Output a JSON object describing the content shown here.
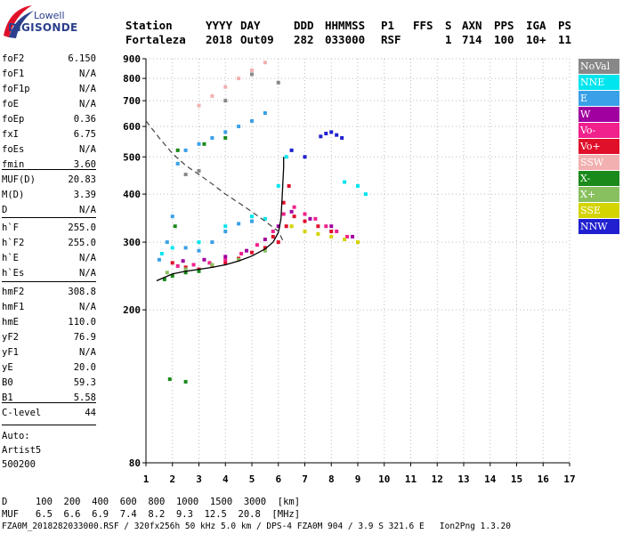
{
  "logo": {
    "top": "Lowell",
    "main": "DIGISONDE"
  },
  "header": {
    "line1": [
      "Station",
      "YYYY",
      "DAY",
      "DDD",
      "HHMMSS",
      "P1",
      "FFS",
      "S",
      "AXN",
      "PPS",
      "IGA",
      "PS"
    ],
    "line2": [
      "Fortaleza",
      "2018",
      "Out09",
      "282",
      "033000",
      "RSF",
      "1",
      "714",
      "100",
      "10+",
      "11"
    ]
  },
  "params": {
    "group1": [
      {
        "name": "foF2",
        "value": "6.150"
      },
      {
        "name": "foF1",
        "value": "N/A"
      },
      {
        "name": "foF1p",
        "value": "N/A"
      },
      {
        "name": "foE",
        "value": "N/A"
      },
      {
        "name": "foEp",
        "value": "0.36"
      },
      {
        "name": "fxI",
        "value": "6.75"
      },
      {
        "name": "foEs",
        "value": "N/A"
      },
      {
        "name": "fmin",
        "value": "3.60"
      }
    ],
    "group2": [
      {
        "name": "MUF(D)",
        "value": "20.83"
      },
      {
        "name": "M(D)",
        "value": "3.39"
      },
      {
        "name": "D",
        "value": "N/A"
      }
    ],
    "group3": [
      {
        "name": "h`F",
        "value": "255.0"
      },
      {
        "name": "h`F2",
        "value": "255.0"
      },
      {
        "name": "h`E",
        "value": "N/A"
      },
      {
        "name": "h`Es",
        "value": "N/A"
      }
    ],
    "group4": [
      {
        "name": "hmF2",
        "value": "308.8"
      },
      {
        "name": "hmF1",
        "value": "N/A"
      },
      {
        "name": "hmE",
        "value": "110.0"
      },
      {
        "name": "yF2",
        "value": "76.9"
      },
      {
        "name": "yF1",
        "value": "N/A"
      },
      {
        "name": "yE",
        "value": "20.0"
      },
      {
        "name": "B0",
        "value": "59.3"
      },
      {
        "name": "B1",
        "value": "5.58"
      }
    ],
    "group5": [
      {
        "name": "C-level",
        "value": "44"
      }
    ]
  },
  "auto": {
    "line1": "Auto:",
    "line2": "Artist5",
    "line3": "500200"
  },
  "legend": [
    {
      "label": "NoVal",
      "color": "#888888"
    },
    {
      "label": "NNE",
      "color": "#00e5ee"
    },
    {
      "label": "E",
      "color": "#3aa0e8"
    },
    {
      "label": "W",
      "color": "#a000a0"
    },
    {
      "label": "Vo-",
      "color": "#f0208c"
    },
    {
      "label": "Vo+",
      "color": "#e0102a"
    },
    {
      "label": "SSW",
      "color": "#f2b0b0"
    },
    {
      "label": "X-",
      "color": "#1a8a1a"
    },
    {
      "label": "X+",
      "color": "#88c060"
    },
    {
      "label": "SSE",
      "color": "#d4d400"
    },
    {
      "label": "NNW",
      "color": "#2020d0"
    }
  ],
  "footer": {
    "d_row": "D     100  200  400  600  800  1000  1500  3000  [km]",
    "muf_row": "MUF   6.5  6.6  6.9  7.4  8.2  9.3  12.5  20.8  [MHz]",
    "info": "FZA0M_2018282033000.RSF / 320fx256h 50 kHz 5.0 km / DPS-4 FZA0M 904 / 3.9 S 321.6 E   Ion2Png 1.3.20"
  },
  "chart_data": {
    "type": "scatter",
    "title": "",
    "xlabel": "",
    "ylabel": "",
    "xlim": [
      1,
      17
    ],
    "ylim": [
      80,
      900
    ],
    "x_ticks": [
      1,
      2,
      3,
      4,
      5,
      6,
      7,
      8,
      9,
      10,
      11,
      12,
      13,
      14,
      15,
      16,
      17
    ],
    "y_ticks": [
      80,
      200,
      300,
      400,
      500,
      600,
      700,
      800,
      900
    ],
    "y_scale": "log",
    "grid": true,
    "legend_position": "right",
    "series": [
      {
        "color": "#e0102a",
        "points": [
          [
            2.0,
            265
          ],
          [
            2.5,
            258
          ],
          [
            3.0,
            255
          ],
          [
            3.5,
            260
          ],
          [
            4.0,
            265
          ],
          [
            4.5,
            272
          ],
          [
            5.0,
            282
          ],
          [
            5.5,
            290
          ],
          [
            6.0,
            300
          ],
          [
            6.3,
            330
          ],
          [
            6.6,
            350
          ],
          [
            7.0,
            340
          ],
          [
            7.5,
            330
          ],
          [
            8.0,
            320
          ],
          [
            5.8,
            310
          ],
          [
            6.2,
            380
          ],
          [
            6.4,
            420
          ]
        ]
      },
      {
        "color": "#f0208c",
        "points": [
          [
            2.2,
            260
          ],
          [
            2.8,
            262
          ],
          [
            3.4,
            265
          ],
          [
            4.0,
            270
          ],
          [
            4.6,
            280
          ],
          [
            5.2,
            295
          ],
          [
            5.8,
            320
          ],
          [
            6.2,
            355
          ],
          [
            6.6,
            370
          ],
          [
            7.0,
            355
          ],
          [
            7.4,
            345
          ],
          [
            7.8,
            330
          ],
          [
            8.2,
            320
          ],
          [
            8.6,
            310
          ]
        ]
      },
      {
        "color": "#a000a0",
        "points": [
          [
            2.4,
            268
          ],
          [
            3.2,
            270
          ],
          [
            4.0,
            275
          ],
          [
            4.8,
            285
          ],
          [
            5.5,
            305
          ],
          [
            6.0,
            330
          ],
          [
            6.5,
            360
          ],
          [
            7.2,
            345
          ],
          [
            8.0,
            330
          ],
          [
            8.8,
            310
          ]
        ]
      },
      {
        "color": "#3aa0e8",
        "points": [
          [
            1.5,
            270
          ],
          [
            1.8,
            300
          ],
          [
            2.0,
            350
          ],
          [
            2.5,
            290
          ],
          [
            3.0,
            285
          ],
          [
            3.5,
            300
          ],
          [
            4.0,
            320
          ],
          [
            4.5,
            335
          ],
          [
            5.0,
            340
          ],
          [
            2.2,
            480
          ],
          [
            2.5,
            520
          ],
          [
            3.0,
            540
          ],
          [
            3.5,
            560
          ],
          [
            4.0,
            580
          ],
          [
            4.5,
            600
          ],
          [
            5.0,
            620
          ],
          [
            5.5,
            650
          ]
        ]
      },
      {
        "color": "#00e5ee",
        "points": [
          [
            1.6,
            280
          ],
          [
            2.0,
            290
          ],
          [
            3.0,
            300
          ],
          [
            4.0,
            330
          ],
          [
            5.0,
            350
          ],
          [
            5.5,
            345
          ],
          [
            6.0,
            420
          ],
          [
            6.3,
            500
          ],
          [
            8.5,
            430
          ],
          [
            9.0,
            420
          ],
          [
            9.3,
            400
          ]
        ]
      },
      {
        "color": "#1a8a1a",
        "points": [
          [
            1.7,
            240
          ],
          [
            2.0,
            245
          ],
          [
            2.5,
            250
          ],
          [
            3.0,
            252
          ],
          [
            2.1,
            330
          ],
          [
            2.2,
            520
          ],
          [
            3.2,
            540
          ],
          [
            4.0,
            560
          ],
          [
            1.9,
            132
          ],
          [
            2.5,
            130
          ]
        ]
      },
      {
        "color": "#88c060",
        "points": [
          [
            1.8,
            250
          ],
          [
            2.5,
            255
          ],
          [
            3.5,
            262
          ],
          [
            4.5,
            270
          ],
          [
            5.5,
            285
          ]
        ]
      },
      {
        "color": "#d4d400",
        "points": [
          [
            6.5,
            330
          ],
          [
            7.0,
            320
          ],
          [
            7.5,
            315
          ],
          [
            8.0,
            310
          ],
          [
            8.5,
            305
          ],
          [
            9.0,
            300
          ]
        ]
      },
      {
        "color": "#f2b0b0",
        "points": [
          [
            3.0,
            680
          ],
          [
            3.5,
            720
          ],
          [
            4.0,
            760
          ],
          [
            4.5,
            800
          ],
          [
            5.0,
            840
          ],
          [
            5.5,
            880
          ]
        ]
      },
      {
        "color": "#2020d0",
        "points": [
          [
            7.6,
            565
          ],
          [
            7.8,
            575
          ],
          [
            8.0,
            580
          ],
          [
            8.2,
            570
          ],
          [
            8.4,
            560
          ],
          [
            6.5,
            520
          ],
          [
            7.0,
            500
          ]
        ]
      },
      {
        "color": "#888888",
        "points": [
          [
            2.5,
            450
          ],
          [
            3.0,
            460
          ],
          [
            4.0,
            700
          ],
          [
            5.0,
            820
          ],
          [
            6.0,
            780
          ]
        ]
      }
    ],
    "curves": {
      "solid": [
        [
          1.4,
          238
        ],
        [
          2.0,
          248
        ],
        [
          2.5,
          252
        ],
        [
          3.0,
          255
        ],
        [
          3.5,
          258
        ],
        [
          4.0,
          262
        ],
        [
          4.5,
          268
        ],
        [
          5.0,
          276
        ],
        [
          5.5,
          288
        ],
        [
          5.8,
          300
        ],
        [
          6.0,
          318
        ],
        [
          6.1,
          345
        ],
        [
          6.15,
          400
        ],
        [
          6.2,
          470
        ],
        [
          6.2,
          500
        ]
      ],
      "dashed": [
        [
          1.0,
          620
        ],
        [
          1.5,
          560
        ],
        [
          2.0,
          510
        ],
        [
          2.5,
          475
        ],
        [
          3.0,
          450
        ],
        [
          3.5,
          425
        ],
        [
          4.0,
          400
        ],
        [
          4.5,
          380
        ],
        [
          5.0,
          360
        ],
        [
          5.5,
          340
        ],
        [
          6.0,
          320
        ],
        [
          6.2,
          300
        ]
      ]
    }
  }
}
